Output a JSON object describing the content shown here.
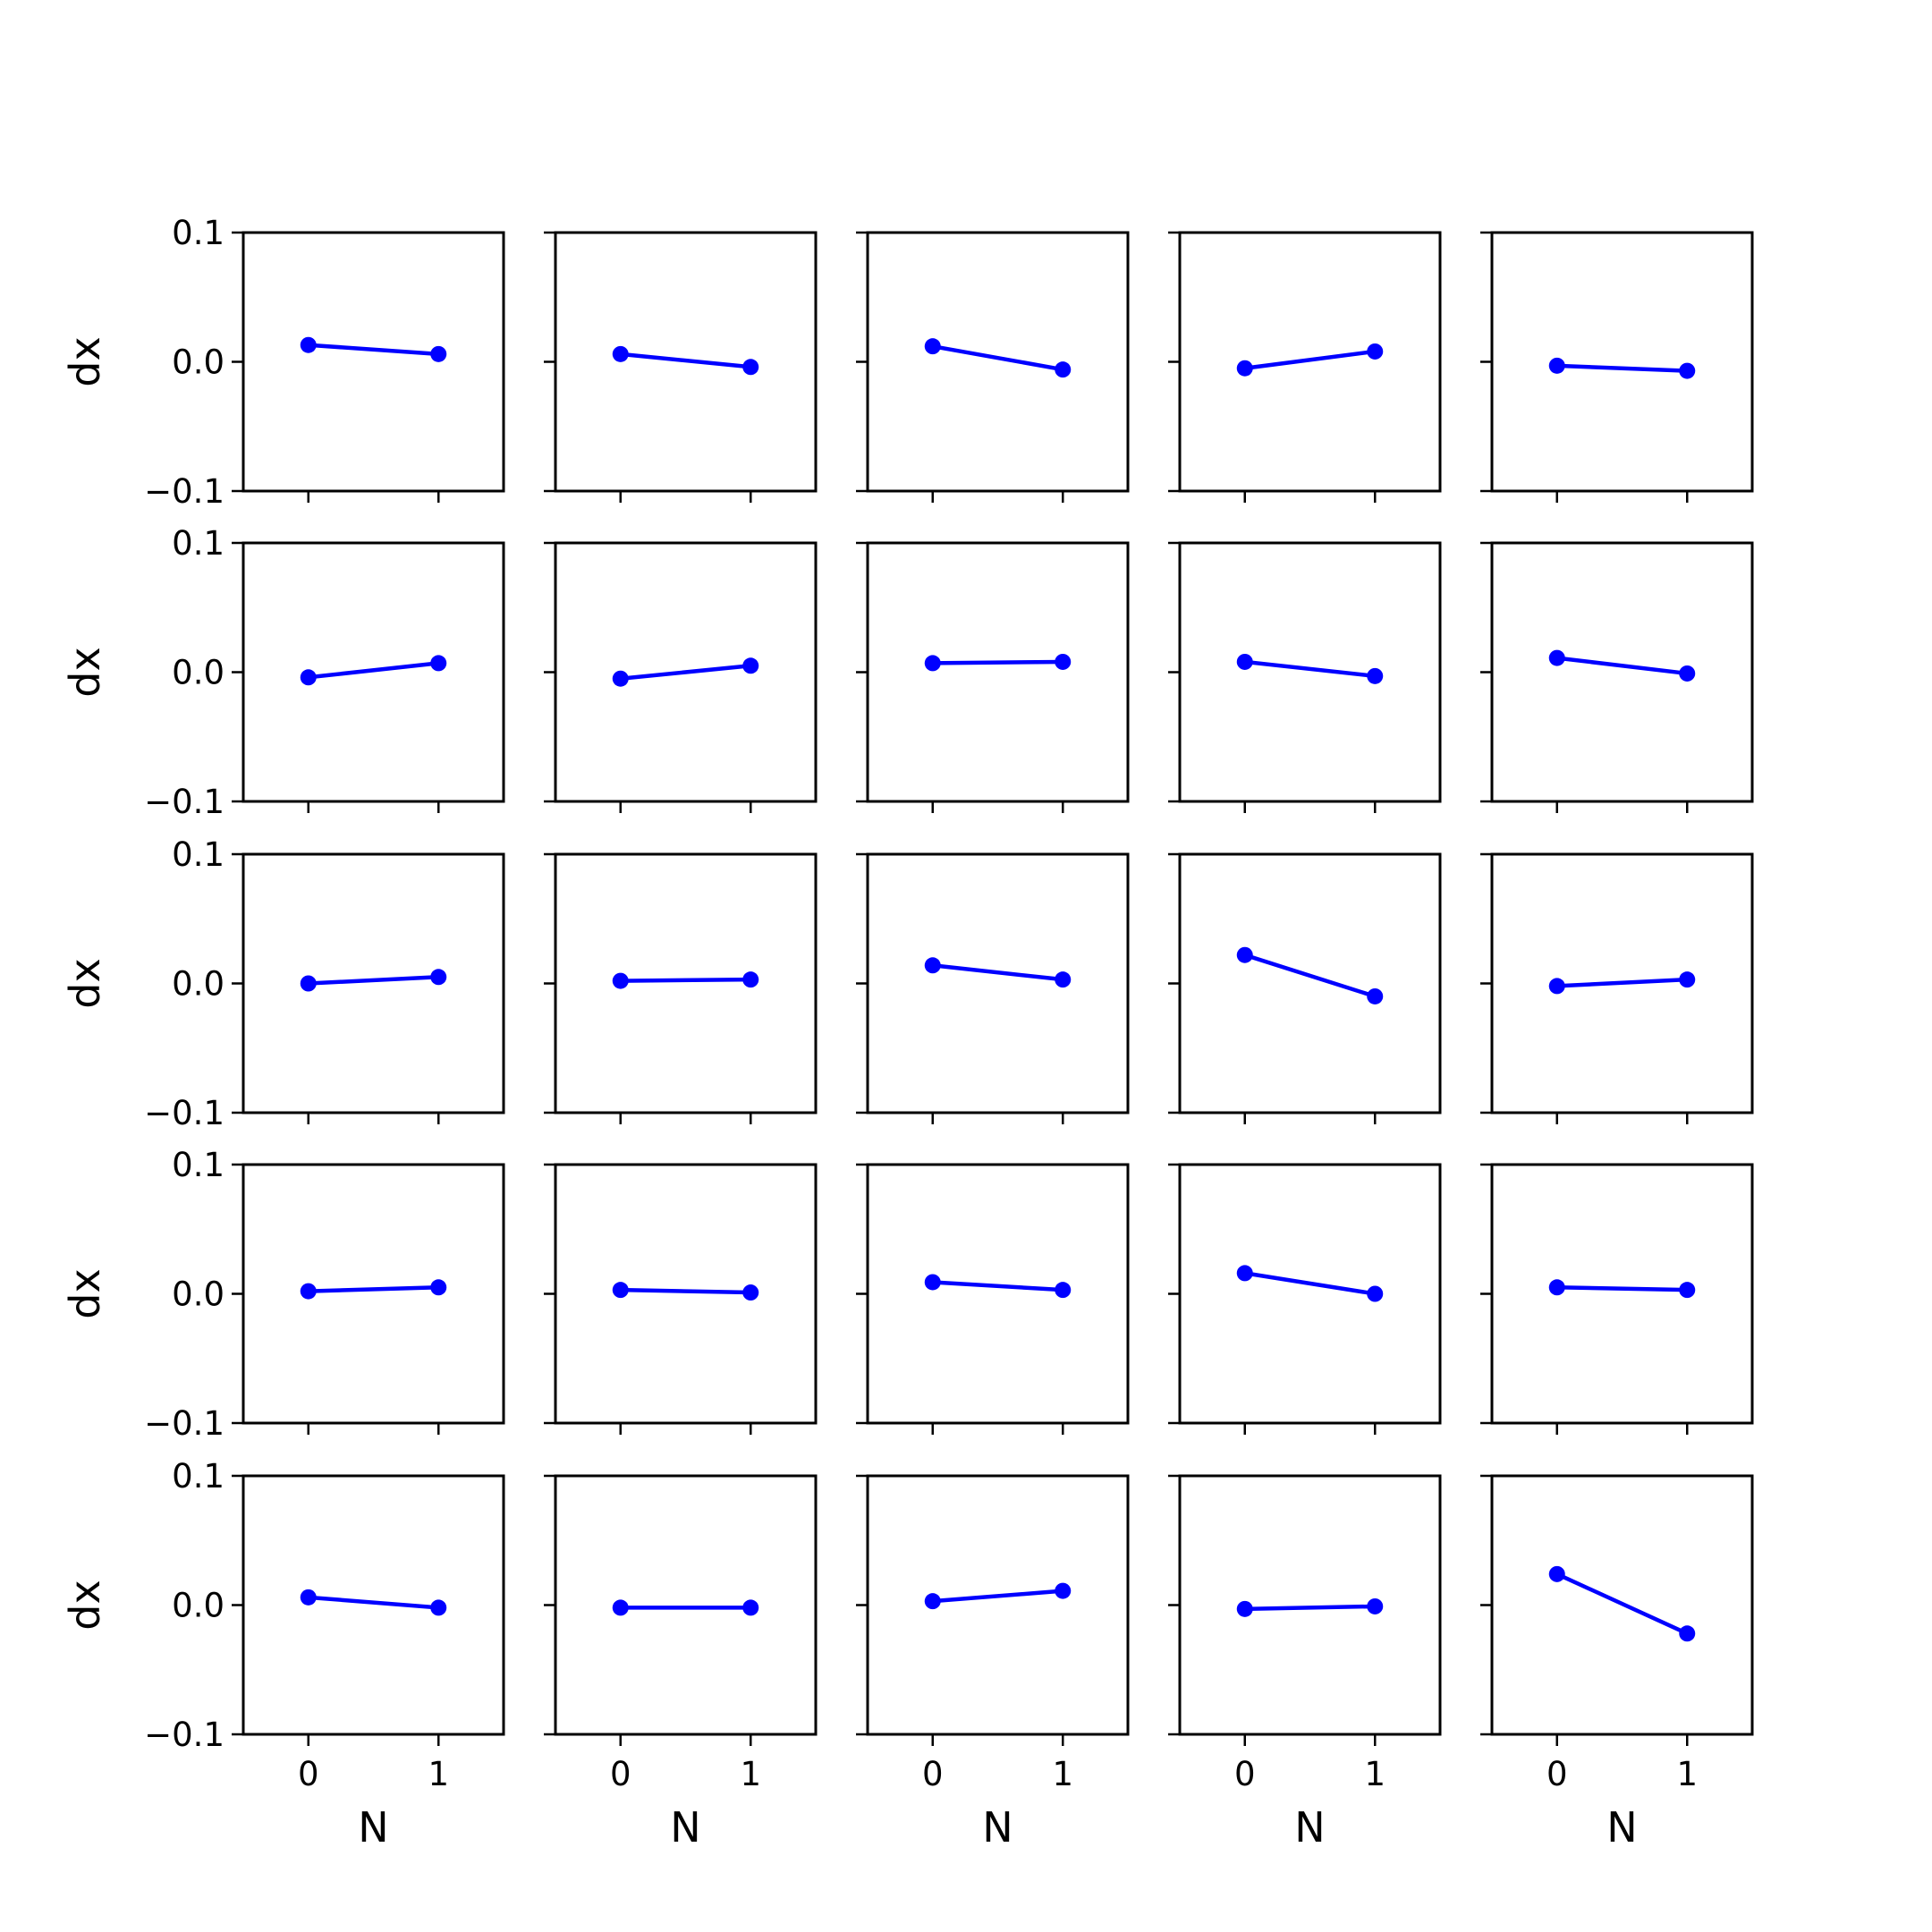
{
  "chart_data": {
    "type": "line",
    "layout": "small-multiples",
    "rows": 5,
    "cols": 5,
    "xlabel": "N",
    "ylabel": "dx",
    "xticks": [
      "0",
      "1"
    ],
    "yticks": [
      "0.1",
      "0.0",
      "−0.1"
    ],
    "ylim": [
      -0.1,
      0.1
    ],
    "xlim": [
      -0.5,
      1.5
    ],
    "grid": false,
    "legend": "none",
    "colors": {
      "series": "#0000ff",
      "axes": "#000000",
      "background": "#ffffff"
    },
    "panels": [
      {
        "x": [
          0,
          1
        ],
        "y": [
          0.013,
          0.006
        ]
      },
      {
        "x": [
          0,
          1
        ],
        "y": [
          0.006,
          -0.004
        ]
      },
      {
        "x": [
          0,
          1
        ],
        "y": [
          0.012,
          -0.006
        ]
      },
      {
        "x": [
          0,
          1
        ],
        "y": [
          -0.005,
          0.008
        ]
      },
      {
        "x": [
          0,
          1
        ],
        "y": [
          -0.003,
          -0.007
        ]
      },
      {
        "x": [
          0,
          1
        ],
        "y": [
          -0.004,
          0.007
        ]
      },
      {
        "x": [
          0,
          1
        ],
        "y": [
          -0.005,
          0.005
        ]
      },
      {
        "x": [
          0,
          1
        ],
        "y": [
          0.007,
          0.008
        ]
      },
      {
        "x": [
          0,
          1
        ],
        "y": [
          0.008,
          -0.003
        ]
      },
      {
        "x": [
          0,
          1
        ],
        "y": [
          0.011,
          -0.001
        ]
      },
      {
        "x": [
          0,
          1
        ],
        "y": [
          0.0,
          0.005
        ]
      },
      {
        "x": [
          0,
          1
        ],
        "y": [
          0.002,
          0.003
        ]
      },
      {
        "x": [
          0,
          1
        ],
        "y": [
          0.014,
          0.003
        ]
      },
      {
        "x": [
          0,
          1
        ],
        "y": [
          0.022,
          -0.01
        ]
      },
      {
        "x": [
          0,
          1
        ],
        "y": [
          -0.002,
          0.003
        ]
      },
      {
        "x": [
          0,
          1
        ],
        "y": [
          0.002,
          0.005
        ]
      },
      {
        "x": [
          0,
          1
        ],
        "y": [
          0.003,
          0.001
        ]
      },
      {
        "x": [
          0,
          1
        ],
        "y": [
          0.009,
          0.003
        ]
      },
      {
        "x": [
          0,
          1
        ],
        "y": [
          0.016,
          0.0
        ]
      },
      {
        "x": [
          0,
          1
        ],
        "y": [
          0.005,
          0.003
        ]
      },
      {
        "x": [
          0,
          1
        ],
        "y": [
          0.006,
          -0.002
        ]
      },
      {
        "x": [
          0,
          1
        ],
        "y": [
          -0.002,
          -0.002
        ]
      },
      {
        "x": [
          0,
          1
        ],
        "y": [
          0.003,
          0.011
        ]
      },
      {
        "x": [
          0,
          1
        ],
        "y": [
          -0.003,
          -0.001
        ]
      },
      {
        "x": [
          0,
          1
        ],
        "y": [
          0.024,
          -0.022
        ]
      }
    ]
  }
}
